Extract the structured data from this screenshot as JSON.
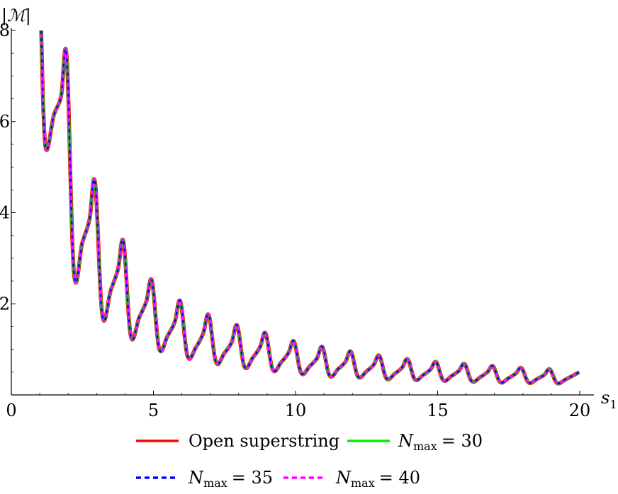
{
  "chart_data": {
    "type": "line",
    "title": "",
    "xlabel": "s",
    "xlabel_sub": "1",
    "ylabel": "|ℳ|",
    "xlim": [
      0,
      20
    ],
    "ylim": [
      0,
      8
    ],
    "xticks": [
      "0",
      "5",
      "10",
      "15",
      "20"
    ],
    "yticks": [
      "2",
      "4",
      "6",
      "8"
    ],
    "grid": false,
    "legend_position": "bottom",
    "curve_keypoints": [
      [
        1.05,
        8.0
      ],
      [
        1.2,
        5.45
      ],
      [
        1.5,
        6.15
      ],
      [
        1.75,
        6.55
      ],
      [
        1.95,
        7.4
      ],
      [
        2.2,
        2.7
      ],
      [
        2.5,
        3.35
      ],
      [
        2.75,
        3.85
      ],
      [
        2.95,
        4.65
      ],
      [
        3.2,
        1.75
      ],
      [
        3.5,
        2.3
      ],
      [
        3.75,
        2.75
      ],
      [
        3.95,
        3.35
      ],
      [
        4.2,
        1.3
      ],
      [
        4.5,
        1.7
      ],
      [
        4.75,
        2.05
      ],
      [
        4.95,
        2.5
      ],
      [
        5.2,
        1.02
      ],
      [
        5.5,
        1.3
      ],
      [
        5.75,
        1.6
      ],
      [
        5.95,
        2.05
      ],
      [
        6.2,
        0.85
      ],
      [
        6.5,
        1.05
      ],
      [
        6.75,
        1.35
      ],
      [
        6.95,
        1.75
      ],
      [
        7.2,
        0.72
      ],
      [
        7.5,
        0.92
      ],
      [
        7.75,
        1.15
      ],
      [
        7.95,
        1.52
      ],
      [
        8.2,
        0.62
      ],
      [
        8.5,
        0.82
      ],
      [
        8.75,
        1.05
      ],
      [
        8.95,
        1.35
      ],
      [
        9.2,
        0.55
      ],
      [
        9.5,
        0.72
      ],
      [
        9.75,
        0.92
      ],
      [
        9.95,
        1.17
      ],
      [
        10.2,
        0.48
      ],
      [
        10.5,
        0.63
      ],
      [
        10.75,
        0.8
      ],
      [
        10.95,
        1.05
      ],
      [
        11.2,
        0.42
      ],
      [
        11.5,
        0.57
      ],
      [
        11.75,
        0.72
      ],
      [
        11.95,
        0.95
      ],
      [
        12.2,
        0.4
      ],
      [
        12.5,
        0.52
      ],
      [
        12.75,
        0.66
      ],
      [
        12.95,
        0.86
      ],
      [
        13.2,
        0.36
      ],
      [
        13.5,
        0.47
      ],
      [
        13.75,
        0.6
      ],
      [
        13.95,
        0.78
      ],
      [
        14.2,
        0.34
      ],
      [
        14.5,
        0.44
      ],
      [
        14.75,
        0.56
      ],
      [
        14.95,
        0.72
      ],
      [
        15.2,
        0.32
      ],
      [
        15.5,
        0.42
      ],
      [
        15.75,
        0.53
      ],
      [
        15.95,
        0.68
      ],
      [
        16.2,
        0.3
      ],
      [
        16.5,
        0.39
      ],
      [
        16.75,
        0.5
      ],
      [
        16.95,
        0.63
      ],
      [
        17.2,
        0.28
      ],
      [
        17.5,
        0.37
      ],
      [
        17.75,
        0.47
      ],
      [
        17.95,
        0.59
      ],
      [
        18.2,
        0.27
      ],
      [
        18.5,
        0.35
      ],
      [
        18.75,
        0.44
      ],
      [
        18.95,
        0.56
      ],
      [
        19.2,
        0.26
      ],
      [
        19.5,
        0.34
      ],
      [
        19.75,
        0.42
      ],
      [
        19.98,
        0.5
      ]
    ],
    "series": [
      {
        "legend_label": "Open superstring",
        "color": "#ff0000",
        "style": "solid"
      },
      {
        "legend_label": "N",
        "legend_sub": "max",
        "legend_suffix": "= 30",
        "color": "#00ee00",
        "style": "solid"
      },
      {
        "legend_label": "N",
        "legend_sub": "max",
        "legend_suffix": "= 35",
        "color": "#0000ff",
        "style": "dashed"
      },
      {
        "legend_label": "N",
        "legend_sub": "max",
        "legend_suffix": "= 40",
        "color": "#ff00ff",
        "style": "dashed"
      }
    ]
  }
}
